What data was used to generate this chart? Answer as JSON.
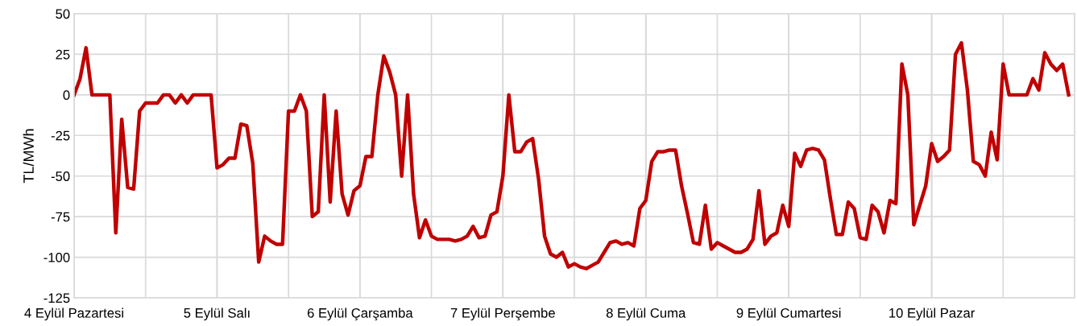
{
  "chart_data": {
    "type": "line",
    "ylabel": "TL/MWh",
    "categories": [
      "4 Eylül Pazartesi",
      null,
      null,
      null,
      null,
      null,
      null,
      null,
      null,
      null,
      null,
      null,
      null,
      null,
      null,
      null,
      null,
      null,
      null,
      null,
      null,
      null,
      null,
      null,
      "5 Eylül Salı",
      null,
      null,
      null,
      null,
      null,
      null,
      null,
      null,
      null,
      null,
      null,
      null,
      null,
      null,
      null,
      null,
      null,
      null,
      null,
      null,
      null,
      null,
      null,
      "6 Eylül Çarşamba",
      null,
      null,
      null,
      null,
      null,
      null,
      null,
      null,
      null,
      null,
      null,
      null,
      null,
      null,
      null,
      null,
      null,
      null,
      null,
      null,
      null,
      null,
      null,
      "7 Eylül Perşembe",
      null,
      null,
      null,
      null,
      null,
      null,
      null,
      null,
      null,
      null,
      null,
      null,
      null,
      null,
      null,
      null,
      null,
      null,
      null,
      null,
      null,
      null,
      null,
      "8 Eylül Cuma",
      null,
      null,
      null,
      null,
      null,
      null,
      null,
      null,
      null,
      null,
      null,
      null,
      null,
      null,
      null,
      null,
      null,
      null,
      null,
      null,
      null,
      null,
      null,
      "9 Eylül Cumartesi",
      null,
      null,
      null,
      null,
      null,
      null,
      null,
      null,
      null,
      null,
      null,
      null,
      null,
      null,
      null,
      null,
      null,
      null,
      null,
      null,
      null,
      null,
      null,
      "10 Eylül Pazar",
      null,
      null,
      null,
      null,
      null,
      null,
      null,
      null,
      null,
      null,
      null,
      null,
      null,
      null,
      null,
      null,
      null,
      null,
      null,
      null,
      null,
      null,
      null
    ],
    "series": [
      {
        "color": "#c00000",
        "values": [
          0,
          10,
          29,
          0,
          0,
          0,
          0,
          -85,
          -15,
          -57,
          -58,
          -10,
          -5,
          -5,
          -5,
          0,
          0,
          -5,
          0,
          -5,
          0,
          0,
          0,
          0,
          -45,
          -43,
          -39,
          -39,
          -18,
          -19,
          -42,
          -103,
          -87,
          -90,
          -92,
          -92,
          -10,
          -10,
          0,
          -10,
          -75,
          -72,
          0,
          -66,
          -10,
          -61,
          -74,
          -59,
          -56,
          -38,
          -38,
          0,
          24,
          14,
          0,
          -50,
          0,
          -61,
          -88,
          -77,
          -87,
          -89,
          -89,
          -89,
          -90,
          -89,
          -87,
          -81,
          -88,
          -87,
          -74,
          -72,
          -50,
          0,
          -35,
          -35,
          -29,
          -27,
          -52,
          -87,
          -98,
          -100,
          -97,
          -106,
          -104,
          -106,
          -107,
          -105,
          -103,
          -97,
          -91,
          -90,
          -92,
          -91,
          -93,
          -70,
          -65,
          -41,
          -35,
          -35,
          -34,
          -34,
          -56,
          -73,
          -91,
          -92,
          -68,
          -95,
          -91,
          -93,
          -95,
          -97,
          -97,
          -95,
          -89,
          -59,
          -92,
          -87,
          -85,
          -68,
          -81,
          -36,
          -44,
          -34,
          -33,
          -34,
          -40,
          -64,
          -86,
          -86,
          -66,
          -70,
          -88,
          -89,
          -68,
          -72,
          -85,
          -65,
          -67,
          19,
          0,
          -80,
          -68,
          -56,
          -30,
          -41,
          -38,
          -34,
          25,
          32,
          3,
          -41,
          -43,
          -50,
          -23,
          -40,
          19,
          0,
          0,
          0,
          0,
          10,
          3,
          26,
          19,
          15,
          19,
          0
        ]
      }
    ],
    "ylim": [
      -125,
      50
    ],
    "yticks": [
      -125,
      -100,
      -75,
      -50,
      -25,
      0,
      25,
      50
    ],
    "grid": true,
    "marker": "none",
    "line_style": "solid"
  }
}
